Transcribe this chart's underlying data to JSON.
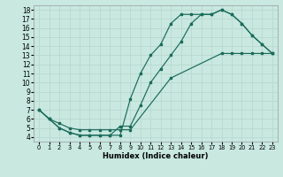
{
  "xlabel": "Humidex (Indice chaleur)",
  "xlim": [
    -0.5,
    23.5
  ],
  "ylim": [
    3.5,
    18.5
  ],
  "xticks": [
    0,
    1,
    2,
    3,
    4,
    5,
    6,
    7,
    8,
    9,
    10,
    11,
    12,
    13,
    14,
    15,
    16,
    17,
    18,
    19,
    20,
    21,
    22,
    23
  ],
  "yticks": [
    4,
    5,
    6,
    7,
    8,
    9,
    10,
    11,
    12,
    13,
    14,
    15,
    16,
    17,
    18
  ],
  "bg_color": "#c8e8e0",
  "grid_color": "#b8d8d0",
  "line_color": "#1a6b5a",
  "line1_x": [
    0,
    1,
    2,
    3,
    4,
    5,
    6,
    7,
    8,
    9,
    10,
    11,
    12,
    13,
    14,
    15,
    16,
    17,
    18,
    19,
    20,
    21,
    22,
    23
  ],
  "line1_y": [
    7.0,
    6.0,
    5.0,
    4.5,
    4.2,
    4.2,
    4.2,
    4.2,
    4.2,
    8.2,
    11.0,
    13.0,
    14.2,
    16.5,
    17.5,
    17.5,
    17.5,
    17.5,
    18.0,
    17.5,
    16.5,
    15.2,
    14.2,
    13.2
  ],
  "line2_x": [
    0,
    1,
    2,
    3,
    4,
    5,
    6,
    7,
    8,
    9,
    10,
    11,
    12,
    13,
    14,
    15,
    16,
    17,
    18,
    19,
    20,
    21,
    22,
    23
  ],
  "line2_y": [
    7.0,
    6.0,
    5.0,
    4.5,
    4.2,
    4.2,
    4.2,
    4.2,
    5.2,
    5.2,
    7.5,
    10.0,
    11.5,
    13.0,
    14.5,
    16.5,
    17.5,
    17.5,
    18.0,
    17.5,
    16.5,
    15.2,
    14.2,
    13.2
  ],
  "line3_x": [
    0,
    1,
    2,
    3,
    4,
    5,
    6,
    7,
    8,
    9,
    13,
    18,
    19,
    20,
    21,
    22,
    23
  ],
  "line3_y": [
    7.0,
    6.0,
    5.5,
    5.0,
    4.8,
    4.8,
    4.8,
    4.8,
    4.8,
    4.8,
    10.5,
    13.2,
    13.2,
    13.2,
    13.2,
    13.2,
    13.2
  ]
}
